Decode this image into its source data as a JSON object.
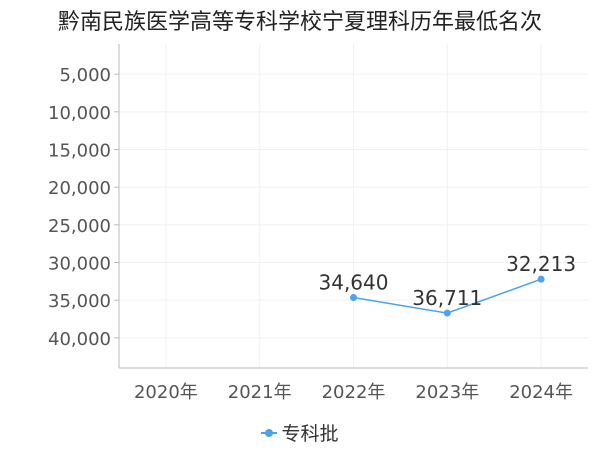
{
  "chart_data": {
    "type": "line",
    "title": "黔南民族医学高等专科学校宁夏理科历年最低名次",
    "categories": [
      "2020年",
      "2021年",
      "2022年",
      "2023年",
      "2024年"
    ],
    "series": [
      {
        "name": "专科批",
        "values": [
          null,
          null,
          34640,
          36711,
          32213
        ],
        "labels": [
          "",
          "",
          "34,640",
          "36,711",
          "32,213"
        ]
      }
    ],
    "y_ticks": [
      "5,000",
      "10,000",
      "15,000",
      "20,000",
      "25,000",
      "30,000",
      "35,000",
      "40,000"
    ],
    "y_tick_values": [
      5000,
      10000,
      15000,
      20000,
      25000,
      30000,
      35000,
      40000
    ],
    "y_inverted": true,
    "ylim": [
      1000,
      44000
    ],
    "grid": true,
    "legend_position": "bottom",
    "colors": {
      "series": "#4aa3f0",
      "axis": "#bbbbbb",
      "grid": "#f1f1f1",
      "tick_text": "#555555"
    }
  }
}
